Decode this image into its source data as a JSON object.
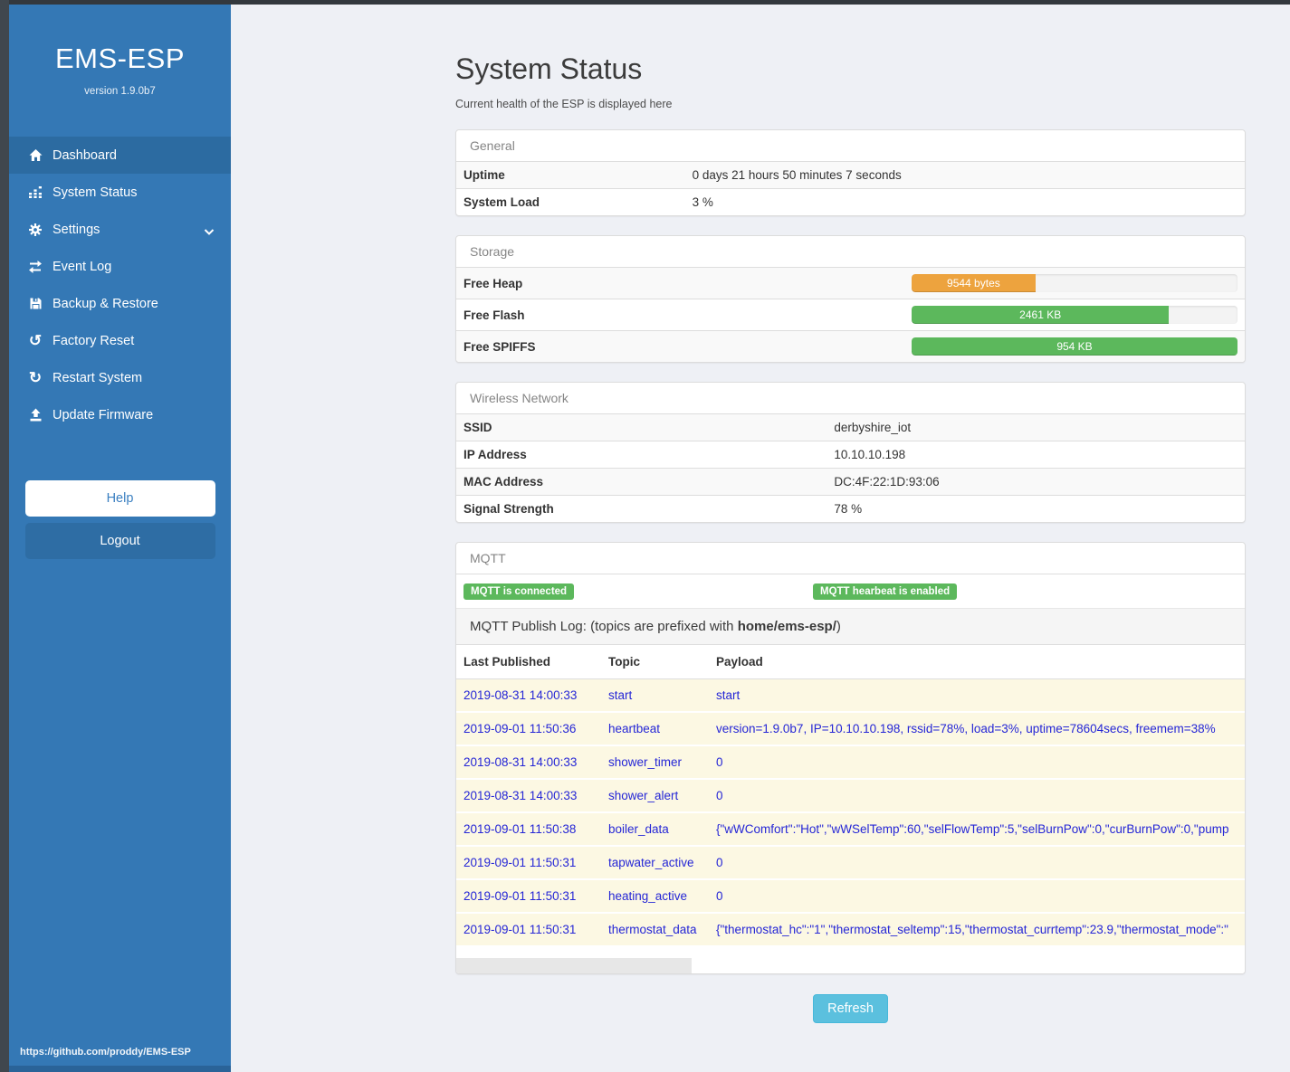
{
  "app": {
    "title": "EMS-ESP",
    "version": "version 1.9.0b7",
    "footer_link": "https://github.com/proddy/EMS-ESP"
  },
  "colors": {
    "sidebar_blue": "#3478b5",
    "active_item_blue": "#2c6ba1",
    "badge_green": "#5cb85c",
    "bar_green": "#5cb85c",
    "bar_orange": "#eda33e",
    "refresh_blue": "#5bc0de",
    "link_blue": "#2526d6",
    "row_yellow": "#fcf8e3"
  },
  "sidebar": {
    "items": [
      {
        "label": "Dashboard",
        "icon": "home-icon",
        "active": true
      },
      {
        "label": "System Status",
        "icon": "system-status-icon",
        "active": false
      },
      {
        "label": "Settings",
        "icon": "gear-icon",
        "active": false,
        "has_chevron": true
      },
      {
        "label": "Event Log",
        "icon": "exchange-icon",
        "active": false
      },
      {
        "label": "Backup & Restore",
        "icon": "floppy-icon",
        "active": false
      },
      {
        "label": "Factory Reset",
        "icon": "undo-icon",
        "active": false
      },
      {
        "label": "Restart System",
        "icon": "refresh-icon",
        "active": false
      },
      {
        "label": "Update Firmware",
        "icon": "upload-icon",
        "active": false
      }
    ],
    "help_label": "Help",
    "logout_label": "Logout"
  },
  "page": {
    "title": "System Status",
    "subtitle": "Current health of the ESP is displayed here",
    "refresh_label": "Refresh"
  },
  "general": {
    "heading": "General",
    "rows": [
      {
        "label": "Uptime",
        "value": "0 days 21 hours 50 minutes 7 seconds"
      },
      {
        "label": "System Load",
        "value": "3 %"
      }
    ]
  },
  "storage": {
    "heading": "Storage",
    "rows": [
      {
        "label": "Free Heap",
        "bar_label": "9544 bytes",
        "percent": 38,
        "color": "#eda33e"
      },
      {
        "label": "Free Flash",
        "bar_label": "2461 KB",
        "percent": 79,
        "color": "#5cb85c"
      },
      {
        "label": "Free SPIFFS",
        "bar_label": "954 KB",
        "percent": 100,
        "color": "#5cb85c"
      }
    ]
  },
  "wireless": {
    "heading": "Wireless Network",
    "rows": [
      {
        "label": "SSID",
        "value": "derbyshire_iot"
      },
      {
        "label": "IP Address",
        "value": "10.10.10.198"
      },
      {
        "label": "MAC Address",
        "value": "DC:4F:22:1D:93:06"
      },
      {
        "label": "Signal Strength",
        "value": "78 %"
      }
    ]
  },
  "mqtt": {
    "heading": "MQTT",
    "badges": [
      "MQTT is connected",
      "MQTT hearbeat is enabled"
    ],
    "publish_log_prefix": "MQTT Publish Log: (topics are prefixed with ",
    "publish_log_bold": "home/ems-esp/",
    "publish_log_suffix": ")",
    "columns": [
      "Last Published",
      "Topic",
      "Payload"
    ],
    "rows": [
      {
        "date": "2019-08-31 14:00:33",
        "topic": "start",
        "payload": "start"
      },
      {
        "date": "2019-09-01 11:50:36",
        "topic": "heartbeat",
        "payload": "version=1.9.0b7, IP=10.10.10.198, rssid=78%, load=3%, uptime=78604secs, freemem=38%"
      },
      {
        "date": "2019-08-31 14:00:33",
        "topic": "shower_timer",
        "payload": "0"
      },
      {
        "date": "2019-08-31 14:00:33",
        "topic": "shower_alert",
        "payload": "0"
      },
      {
        "date": "2019-09-01 11:50:38",
        "topic": "boiler_data",
        "payload": "{\"wWComfort\":\"Hot\",\"wWSelTemp\":60,\"selFlowTemp\":5,\"selBurnPow\":0,\"curBurnPow\":0,\"pump"
      },
      {
        "date": "2019-09-01 11:50:31",
        "topic": "tapwater_active",
        "payload": "0"
      },
      {
        "date": "2019-09-01 11:50:31",
        "topic": "heating_active",
        "payload": "0"
      },
      {
        "date": "2019-09-01 11:50:31",
        "topic": "thermostat_data",
        "payload": "{\"thermostat_hc\":\"1\",\"thermostat_seltemp\":15,\"thermostat_currtemp\":23.9,\"thermostat_mode\":\""
      }
    ]
  }
}
